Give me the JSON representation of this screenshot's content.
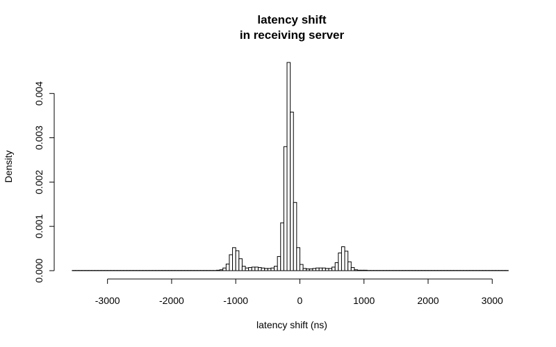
{
  "chart_data": {
    "type": "bar",
    "title_lines": [
      "latency shift",
      "in receiving server"
    ],
    "xlabel": "latency shift (ns)",
    "ylabel": "Density",
    "xlim": [
      -3560,
      3290
    ],
    "ylim": [
      0,
      0.0047
    ],
    "x_ticks": [
      -3000,
      -2000,
      -1000,
      0,
      1000,
      2000,
      3000
    ],
    "y_ticks": [
      0.0,
      0.001,
      0.002,
      0.003,
      0.004
    ],
    "y_tick_labels": [
      "0.000",
      "0.001",
      "0.002",
      "0.003",
      "0.004"
    ],
    "bin_width": 50,
    "bins": [
      {
        "x0": -1300,
        "x1": -1250,
        "density": 1e-05
      },
      {
        "x0": -1250,
        "x1": -1200,
        "density": 2e-05
      },
      {
        "x0": -1200,
        "x1": -1150,
        "density": 6e-05
      },
      {
        "x0": -1150,
        "x1": -1100,
        "density": 0.00015
      },
      {
        "x0": -1100,
        "x1": -1050,
        "density": 0.00036
      },
      {
        "x0": -1050,
        "x1": -1000,
        "density": 0.00052
      },
      {
        "x0": -1000,
        "x1": -950,
        "density": 0.00045
      },
      {
        "x0": -950,
        "x1": -900,
        "density": 0.00027
      },
      {
        "x0": -900,
        "x1": -850,
        "density": 0.0001
      },
      {
        "x0": -850,
        "x1": -800,
        "density": 6e-05
      },
      {
        "x0": -800,
        "x1": -750,
        "density": 7e-05
      },
      {
        "x0": -750,
        "x1": -700,
        "density": 8e-05
      },
      {
        "x0": -700,
        "x1": -650,
        "density": 8e-05
      },
      {
        "x0": -650,
        "x1": -600,
        "density": 7e-05
      },
      {
        "x0": -600,
        "x1": -550,
        "density": 6e-05
      },
      {
        "x0": -550,
        "x1": -500,
        "density": 5e-05
      },
      {
        "x0": -500,
        "x1": -450,
        "density": 5e-05
      },
      {
        "x0": -450,
        "x1": -400,
        "density": 6e-05
      },
      {
        "x0": -400,
        "x1": -350,
        "density": 0.0001
      },
      {
        "x0": -350,
        "x1": -300,
        "density": 0.00032
      },
      {
        "x0": -300,
        "x1": -250,
        "density": 0.00108
      },
      {
        "x0": -250,
        "x1": -200,
        "density": 0.0028
      },
      {
        "x0": -200,
        "x1": -150,
        "density": 0.0047
      },
      {
        "x0": -150,
        "x1": -100,
        "density": 0.00358
      },
      {
        "x0": -100,
        "x1": -50,
        "density": 0.00154
      },
      {
        "x0": -50,
        "x1": 0,
        "density": 0.00052
      },
      {
        "x0": 0,
        "x1": 50,
        "density": 0.00014
      },
      {
        "x0": 50,
        "x1": 100,
        "density": 5e-05
      },
      {
        "x0": 100,
        "x1": 150,
        "density": 4e-05
      },
      {
        "x0": 150,
        "x1": 200,
        "density": 4e-05
      },
      {
        "x0": 200,
        "x1": 250,
        "density": 5e-05
      },
      {
        "x0": 250,
        "x1": 300,
        "density": 6e-05
      },
      {
        "x0": 300,
        "x1": 350,
        "density": 6e-05
      },
      {
        "x0": 350,
        "x1": 400,
        "density": 6e-05
      },
      {
        "x0": 400,
        "x1": 450,
        "density": 5e-05
      },
      {
        "x0": 450,
        "x1": 500,
        "density": 5e-05
      },
      {
        "x0": 500,
        "x1": 550,
        "density": 8e-05
      },
      {
        "x0": 550,
        "x1": 600,
        "density": 0.00018
      },
      {
        "x0": 600,
        "x1": 650,
        "density": 0.0004
      },
      {
        "x0": 650,
        "x1": 700,
        "density": 0.00054
      },
      {
        "x0": 700,
        "x1": 750,
        "density": 0.00044
      },
      {
        "x0": 750,
        "x1": 800,
        "density": 0.0002
      },
      {
        "x0": 800,
        "x1": 850,
        "density": 7e-05
      },
      {
        "x0": 850,
        "x1": 900,
        "density": 2e-05
      },
      {
        "x0": 900,
        "x1": 950,
        "density": 1e-05
      },
      {
        "x0": 950,
        "x1": 1000,
        "density": 1e-05
      },
      {
        "x0": 1000,
        "x1": 1050,
        "density": 1e-05
      }
    ],
    "tail_density": 5e-06,
    "grid": false,
    "legend": "none"
  }
}
